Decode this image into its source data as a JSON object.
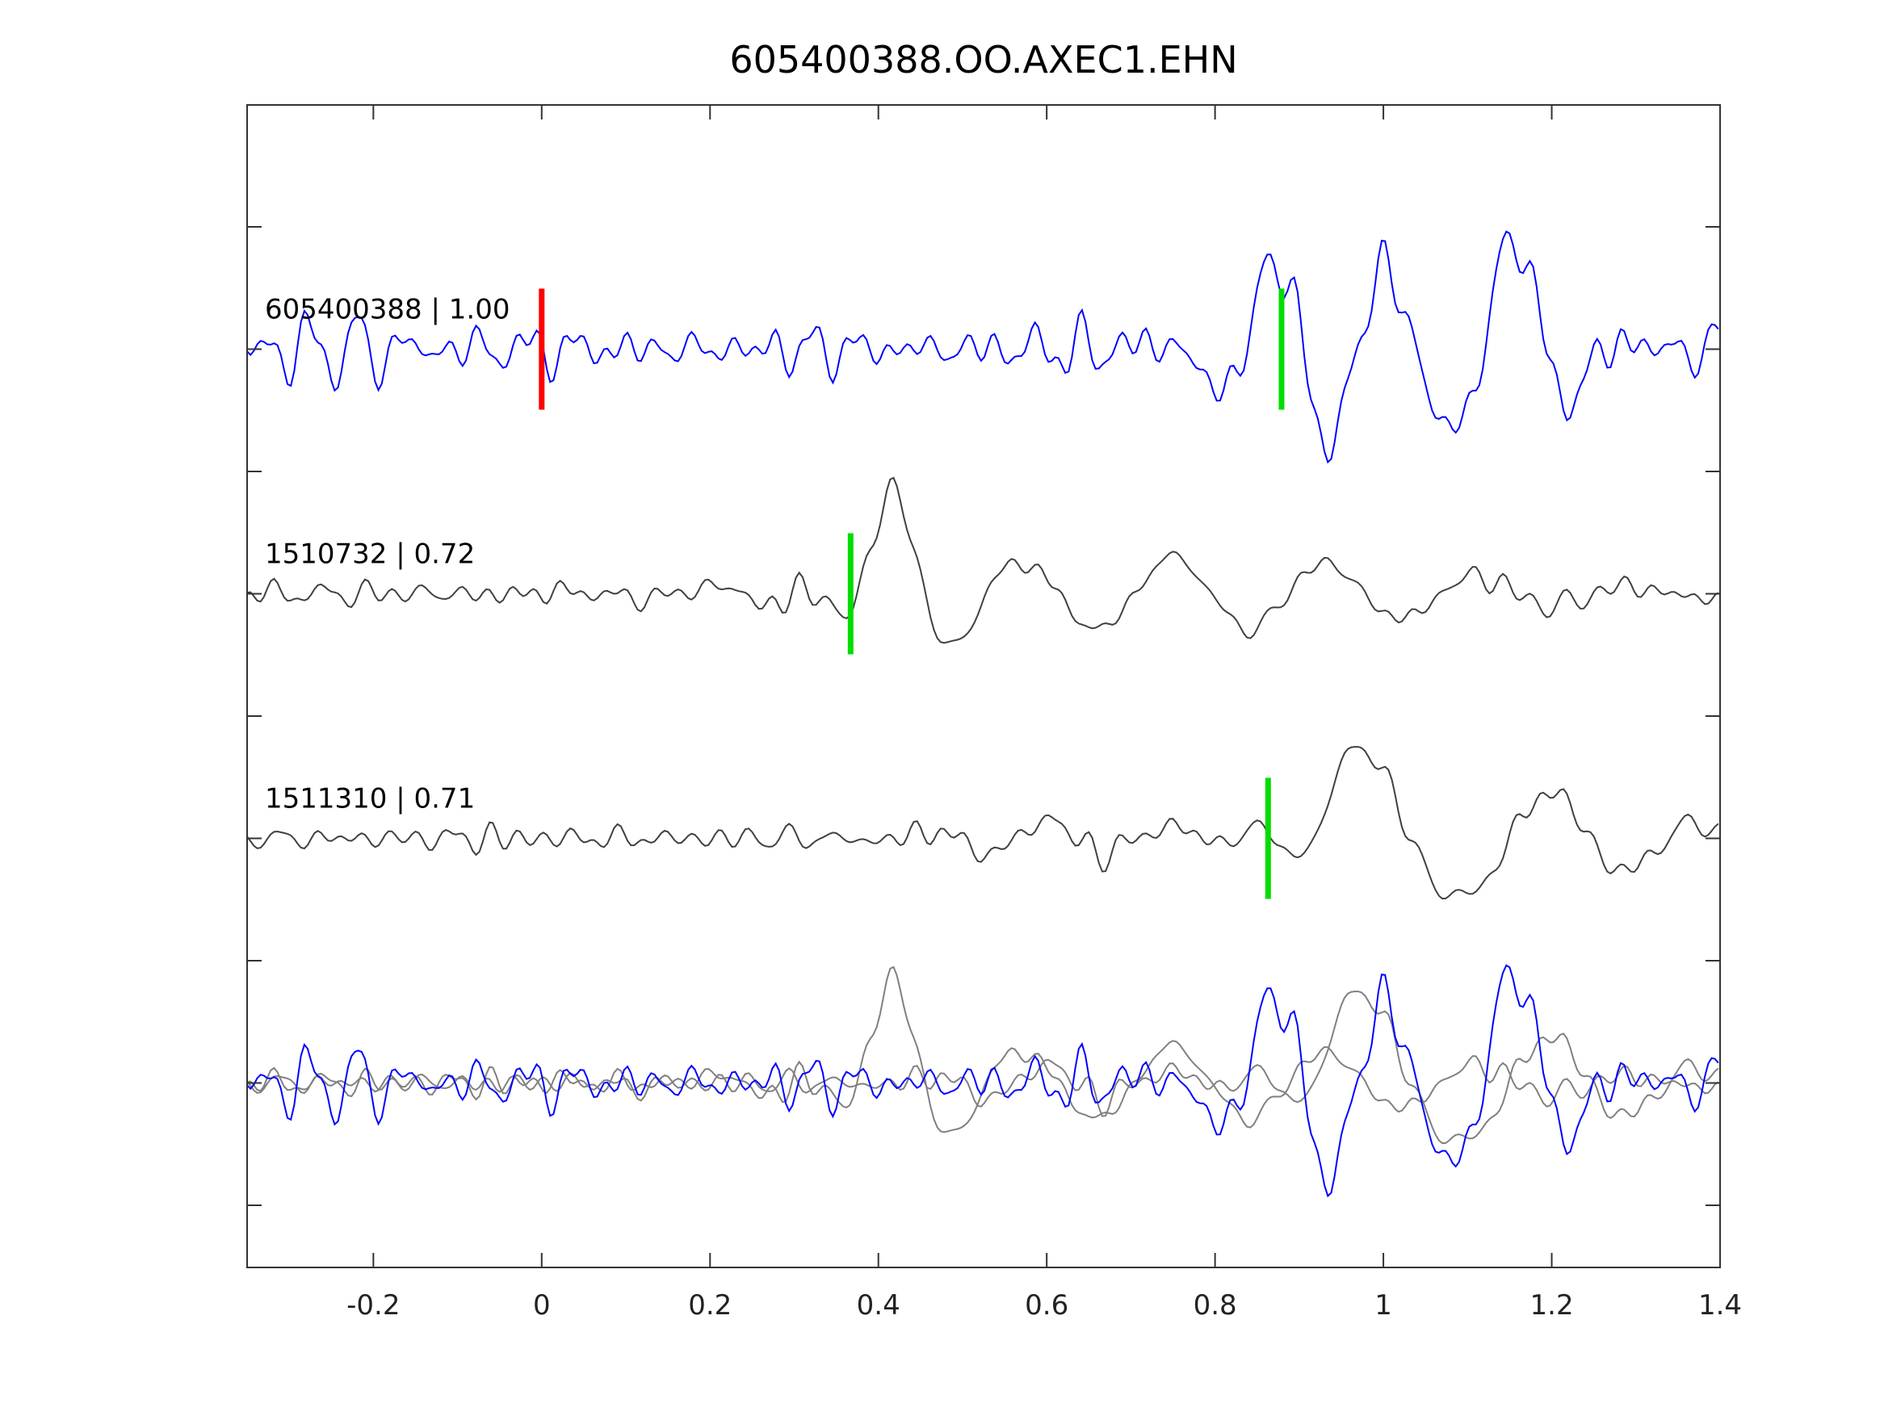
{
  "chart_data": {
    "type": "line",
    "title": "605400388.OO.AXEC1.EHN",
    "xlabel": "",
    "ylabel": "",
    "xlim": [
      -0.35,
      1.4
    ],
    "x_ticks": [
      "-0.2",
      "0",
      "0.2",
      "0.4",
      "0.6",
      "0.8",
      "1",
      "1.2",
      "1.4"
    ],
    "x_tick_values": [
      -0.2,
      0,
      0.2,
      0.4,
      0.6,
      0.8,
      1,
      1.2,
      1.4
    ],
    "y_tick_count": 9,
    "grid": false,
    "series": [
      {
        "name": "605400388",
        "label": "605400388 | 1.00",
        "correlation": 1.0,
        "color": "#0000ff",
        "overlay_color": "#0000ff",
        "row": 0,
        "seed": 11,
        "noise": 0.28,
        "events": [
          {
            "t": 0.88,
            "amp": 0.55,
            "freq": 7.0,
            "width": 0.06
          },
          {
            "t": 1.0,
            "amp": 0.6,
            "freq": 6.8,
            "width": 0.12
          },
          {
            "t": 1.16,
            "amp": 0.7,
            "freq": 7.0,
            "width": 0.05
          }
        ],
        "picks": [
          {
            "t": 0.0,
            "color": "#ff0000"
          },
          {
            "t": 0.879,
            "color": "#00dd00"
          }
        ]
      },
      {
        "name": "1510732",
        "label": "1510732 | 0.72",
        "correlation": 0.72,
        "color": "#404040",
        "overlay_color": "#808080",
        "row": 1,
        "seed": 23,
        "noise": 0.12,
        "events": [
          {
            "t": 0.42,
            "amp": 0.75,
            "freq": 6.0,
            "width": 0.05
          },
          {
            "t": 0.75,
            "amp": 0.3,
            "freq": 5.5,
            "width": 0.3
          },
          {
            "t": 0.32,
            "amp": 0.2,
            "freq": 7,
            "width": 0.04
          }
        ],
        "picks": [
          {
            "t": 0.367,
            "color": "#00dd00"
          }
        ]
      },
      {
        "name": "1511310",
        "label": "1511310 | 0.71",
        "correlation": 0.71,
        "color": "#404040",
        "overlay_color": "#808080",
        "row": 2,
        "seed": 37,
        "noise": 0.1,
        "events": [
          {
            "t": 0.97,
            "amp": 0.75,
            "freq": 4.5,
            "width": 0.09
          },
          {
            "t": 0.86,
            "amp": 0.45,
            "freq": 5,
            "width": 0.03
          },
          {
            "t": 1.2,
            "amp": 0.35,
            "freq": 5.5,
            "width": 0.12
          },
          {
            "t": 0.6,
            "amp": 0.15,
            "freq": 7,
            "width": 0.1
          }
        ],
        "picks": [
          {
            "t": 0.863,
            "color": "#00dd00"
          }
        ]
      }
    ],
    "overlay_row": 3
  }
}
